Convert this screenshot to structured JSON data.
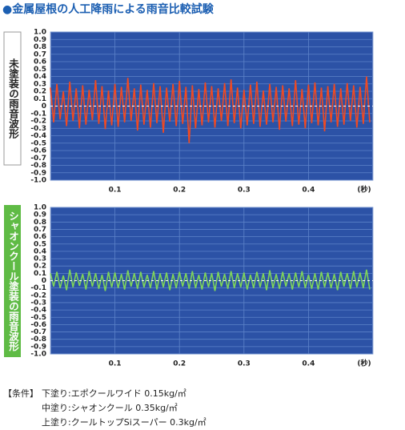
{
  "title": "●金属屋根の人工降雨による雨音比較試験",
  "chart_data": [
    {
      "type": "line",
      "xlabel": "(秒)",
      "xlim": [
        0,
        0.5
      ],
      "xticks": [
        0.1,
        0.2,
        0.3,
        0.4
      ],
      "ylim": [
        -1,
        1
      ],
      "yticks": [
        {
          "value": 1,
          "label": "1.0"
        },
        0.9,
        0.8,
        0.7,
        0.6,
        0.5,
        0.4,
        0.3,
        0.2,
        0.1,
        0,
        -0.1,
        -0.2,
        -0.3,
        -0.4,
        -0.5,
        -0.6,
        -0.7,
        -0.8,
        -0.9,
        {
          "value": -1,
          "label": "-1.0"
        }
      ],
      "grid": true,
      "x": [
        0,
        0.005,
        0.01,
        0.015,
        0.02,
        0.025,
        0.03,
        0.035,
        0.04,
        0.045,
        0.05,
        0.055,
        0.06,
        0.065,
        0.07,
        0.075,
        0.08,
        0.085,
        0.09,
        0.095,
        0.1,
        0.105,
        0.11,
        0.115,
        0.12,
        0.125,
        0.13,
        0.135,
        0.14,
        0.145,
        0.15,
        0.155,
        0.16,
        0.165,
        0.17,
        0.175,
        0.18,
        0.185,
        0.19,
        0.195,
        0.2,
        0.205,
        0.21,
        0.215,
        0.22,
        0.225,
        0.23,
        0.235,
        0.24,
        0.245,
        0.25,
        0.255,
        0.26,
        0.265,
        0.27,
        0.275,
        0.28,
        0.285,
        0.29,
        0.295,
        0.3,
        0.305,
        0.31,
        0.315,
        0.32,
        0.325,
        0.33,
        0.335,
        0.34,
        0.345,
        0.35,
        0.355,
        0.36,
        0.365,
        0.37,
        0.375,
        0.38,
        0.385,
        0.39,
        0.395,
        0.4,
        0.405,
        0.41,
        0.415,
        0.42,
        0.425,
        0.43,
        0.435,
        0.44,
        0.445,
        0.45,
        0.455,
        0.46,
        0.465,
        0.47,
        0.475,
        0.48,
        0.485,
        0.49,
        0.495
      ],
      "series": [
        {
          "name": "未塗装の雨音波形",
          "color": "#f04a22",
          "values": [
            0.25,
            -0.22,
            0.3,
            -0.18,
            0.2,
            -0.27,
            0.33,
            -0.2,
            0.24,
            -0.3,
            0.28,
            -0.25,
            0.22,
            -0.19,
            0.35,
            -0.24,
            0.27,
            -0.31,
            0.21,
            -0.26,
            0.3,
            -0.28,
            0.26,
            -0.22,
            0.38,
            -0.2,
            0.24,
            -0.33,
            0.29,
            -0.25,
            0.22,
            -0.29,
            0.31,
            -0.23,
            0.27,
            -0.36,
            0.25,
            -0.21,
            0.3,
            -0.27,
            0.34,
            -0.24,
            0.26,
            -0.5,
            0.28,
            -0.3,
            0.23,
            -0.26,
            0.32,
            -0.22,
            0.27,
            -0.29,
            0.24,
            -0.2,
            0.31,
            -0.27,
            0.36,
            -0.23,
            0.25,
            -0.3,
            0.22,
            -0.26,
            0.29,
            -0.24,
            0.33,
            -0.28,
            0.21,
            -0.25,
            0.3,
            -0.22,
            0.26,
            -0.32,
            0.28,
            -0.21,
            0.24,
            -0.27,
            0.35,
            -0.25,
            0.23,
            -0.3,
            0.29,
            -0.23,
            0.32,
            -0.26,
            0.25,
            -0.34,
            0.27,
            -0.22,
            0.3,
            -0.28,
            0.24,
            -0.25,
            0.31,
            -0.2,
            0.28,
            -0.29,
            0.26,
            -0.24,
            0.4,
            -0.22
          ]
        }
      ]
    },
    {
      "type": "line",
      "xlabel": "(秒)",
      "xlim": [
        0,
        0.5
      ],
      "xticks": [
        0.1,
        0.2,
        0.3,
        0.4
      ],
      "ylim": [
        -1,
        1
      ],
      "yticks": [
        {
          "value": 1,
          "label": "1.0"
        },
        0.9,
        0.8,
        0.7,
        0.6,
        0.5,
        0.4,
        0.3,
        0.2,
        0.1,
        0,
        -0.1,
        -0.2,
        -0.3,
        -0.4,
        -0.5,
        -0.6,
        -0.7,
        -0.8,
        -0.9,
        {
          "value": -1,
          "label": "-1.0"
        }
      ],
      "grid": true,
      "x": [
        0,
        0.005,
        0.01,
        0.015,
        0.02,
        0.025,
        0.03,
        0.035,
        0.04,
        0.045,
        0.05,
        0.055,
        0.06,
        0.065,
        0.07,
        0.075,
        0.08,
        0.085,
        0.09,
        0.095,
        0.1,
        0.105,
        0.11,
        0.115,
        0.12,
        0.125,
        0.13,
        0.135,
        0.14,
        0.145,
        0.15,
        0.155,
        0.16,
        0.165,
        0.17,
        0.175,
        0.18,
        0.185,
        0.19,
        0.195,
        0.2,
        0.205,
        0.21,
        0.215,
        0.22,
        0.225,
        0.23,
        0.235,
        0.24,
        0.245,
        0.25,
        0.255,
        0.26,
        0.265,
        0.27,
        0.275,
        0.28,
        0.285,
        0.29,
        0.295,
        0.3,
        0.305,
        0.31,
        0.315,
        0.32,
        0.325,
        0.33,
        0.335,
        0.34,
        0.345,
        0.35,
        0.355,
        0.36,
        0.365,
        0.37,
        0.375,
        0.38,
        0.385,
        0.39,
        0.395,
        0.4,
        0.405,
        0.41,
        0.415,
        0.42,
        0.425,
        0.43,
        0.435,
        0.44,
        0.445,
        0.45,
        0.455,
        0.46,
        0.465,
        0.47,
        0.475,
        0.48,
        0.485,
        0.49,
        0.495
      ],
      "series": [
        {
          "name": "シャオンクール塗装の雨音波形",
          "color": "#7fd45a",
          "values": [
            0.1,
            -0.08,
            0.12,
            -0.1,
            0.07,
            -0.13,
            0.15,
            -0.09,
            0.11,
            -0.07,
            0.09,
            -0.12,
            0.13,
            -0.08,
            0.1,
            -0.11,
            0.08,
            -0.14,
            0.12,
            -0.09,
            0.11,
            -0.1,
            0.09,
            -0.12,
            0.14,
            -0.08,
            0.1,
            -0.11,
            0.12,
            -0.09,
            0.08,
            -0.1,
            0.13,
            -0.12,
            0.1,
            -0.09,
            0.11,
            -0.13,
            0.09,
            -0.1,
            0.12,
            -0.08,
            0.1,
            -0.11,
            0.13,
            -0.1,
            0.08,
            -0.12,
            0.11,
            -0.09,
            0.1,
            -0.14,
            0.12,
            -0.08,
            0.09,
            -0.11,
            0.13,
            -0.1,
            0.1,
            -0.09,
            0.11,
            -0.12,
            0.08,
            -0.1,
            0.12,
            -0.09,
            0.1,
            -0.13,
            0.14,
            -0.1,
            0.09,
            -0.11,
            0.12,
            -0.08,
            0.1,
            -0.12,
            0.11,
            -0.09,
            0.13,
            -0.1,
            0.08,
            -0.11,
            0.1,
            -0.12,
            0.12,
            -0.09,
            0.11,
            -0.1,
            0.09,
            -0.13,
            0.12,
            -0.08,
            0.1,
            -0.11,
            0.13,
            -0.09,
            0.11,
            -0.1,
            0.15,
            -0.12
          ]
        }
      ]
    }
  ],
  "conditions": {
    "heading": "【条件】",
    "lines": [
      "下塗り:エポクールワイド 0.15kg/㎡",
      "中塗り:シャオンクール 0.35kg/㎡",
      "上塗り:クールトップSiスーパー 0.3kg/㎡"
    ]
  }
}
